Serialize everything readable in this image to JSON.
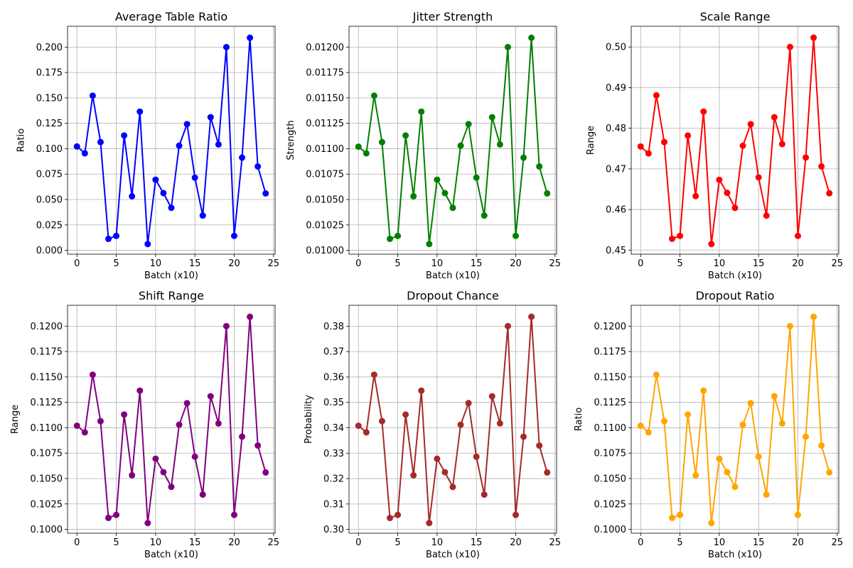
{
  "chart_data": [
    {
      "type": "line",
      "title": "Average Table Ratio",
      "xlabel": "Batch (x10)",
      "ylabel": "Ratio",
      "color": "#0000ff",
      "grid": true,
      "x": [
        0,
        1,
        2,
        3,
        4,
        5,
        6,
        7,
        8,
        9,
        10,
        11,
        12,
        13,
        14,
        15,
        16,
        17,
        18,
        19,
        20,
        21,
        22,
        23,
        24
      ],
      "values": [
        0.1022,
        0.0955,
        0.1522,
        0.1065,
        0.0113,
        0.0142,
        0.113,
        0.0532,
        0.1365,
        0.0062,
        0.0695,
        0.0563,
        0.0418,
        0.103,
        0.1242,
        0.0715,
        0.0342,
        0.131,
        0.1042,
        0.2,
        0.0142,
        0.0912,
        0.2092,
        0.0825,
        0.056
      ],
      "xlim": [
        -1.2,
        25.2
      ],
      "ylim": [
        -0.0038,
        0.2205
      ],
      "xticks": [
        0,
        5,
        10,
        15,
        20,
        25
      ],
      "xtick_labels": [
        "0",
        "5",
        "10",
        "15",
        "20",
        "25"
      ],
      "yticks": [
        0,
        0.025,
        0.05,
        0.075,
        0.1,
        0.125,
        0.15,
        0.175,
        0.2
      ],
      "ytick_labels": [
        "0.000",
        "0.025",
        "0.050",
        "0.075",
        "0.100",
        "0.125",
        "0.150",
        "0.175",
        "0.200"
      ]
    },
    {
      "type": "line",
      "title": "Jitter Strength",
      "xlabel": "Batch (x10)",
      "ylabel": "Strength",
      "color": "#008000",
      "grid": true,
      "x": [
        0,
        1,
        2,
        3,
        4,
        5,
        6,
        7,
        8,
        9,
        10,
        11,
        12,
        13,
        14,
        15,
        16,
        17,
        18,
        19,
        20,
        21,
        22,
        23,
        24
      ],
      "values": [
        0.01102,
        0.010955,
        0.011522,
        0.011065,
        0.010113,
        0.010142,
        0.01113,
        0.010532,
        0.011365,
        0.010062,
        0.010695,
        0.010563,
        0.010418,
        0.01103,
        0.011242,
        0.010715,
        0.010342,
        0.01131,
        0.011042,
        0.012,
        0.010142,
        0.010912,
        0.012092,
        0.010825,
        0.01056
      ],
      "xlim": [
        -1.2,
        25.2
      ],
      "ylim": [
        0.009962,
        0.012205
      ],
      "xticks": [
        0,
        5,
        10,
        15,
        20,
        25
      ],
      "xtick_labels": [
        "0",
        "5",
        "10",
        "15",
        "20",
        "25"
      ],
      "yticks": [
        0.01,
        0.01025,
        0.0105,
        0.01075,
        0.011,
        0.01125,
        0.0115,
        0.01175,
        0.012
      ],
      "ytick_labels": [
        "0.01000",
        "0.01025",
        "0.01050",
        "0.01075",
        "0.01100",
        "0.01125",
        "0.01150",
        "0.01175",
        "0.01200"
      ]
    },
    {
      "type": "line",
      "title": "Scale Range",
      "xlabel": "Batch (x10)",
      "ylabel": "Range",
      "color": "#ff0000",
      "grid": true,
      "x": [
        0,
        1,
        2,
        3,
        4,
        5,
        6,
        7,
        8,
        9,
        10,
        11,
        12,
        13,
        14,
        15,
        16,
        17,
        18,
        19,
        20,
        21,
        22,
        23,
        24
      ],
      "values": [
        0.4755,
        0.4738,
        0.4881,
        0.4766,
        0.4528,
        0.4535,
        0.4782,
        0.4633,
        0.4841,
        0.4515,
        0.4673,
        0.4641,
        0.4604,
        0.4757,
        0.481,
        0.4679,
        0.4585,
        0.4827,
        0.4761,
        0.5,
        0.4535,
        0.4728,
        0.5023,
        0.4706,
        0.464
      ],
      "xlim": [
        -1.2,
        25.2
      ],
      "ylim": [
        0.449,
        0.5051
      ],
      "xticks": [
        0,
        5,
        10,
        15,
        20,
        25
      ],
      "xtick_labels": [
        "0",
        "5",
        "10",
        "15",
        "20",
        "25"
      ],
      "yticks": [
        0.45,
        0.46,
        0.47,
        0.48,
        0.49,
        0.5
      ],
      "ytick_labels": [
        "0.45",
        "0.46",
        "0.47",
        "0.48",
        "0.49",
        "0.50"
      ]
    },
    {
      "type": "line",
      "title": "Shift Range",
      "xlabel": "Batch (x10)",
      "ylabel": "Range",
      "color": "#800080",
      "grid": true,
      "x": [
        0,
        1,
        2,
        3,
        4,
        5,
        6,
        7,
        8,
        9,
        10,
        11,
        12,
        13,
        14,
        15,
        16,
        17,
        18,
        19,
        20,
        21,
        22,
        23,
        24
      ],
      "values": [
        0.1102,
        0.10955,
        0.11522,
        0.11065,
        0.10113,
        0.10142,
        0.1113,
        0.10532,
        0.11365,
        0.10062,
        0.10695,
        0.10563,
        0.10418,
        0.1103,
        0.11242,
        0.10715,
        0.10342,
        0.1131,
        0.11042,
        0.12,
        0.10142,
        0.10912,
        0.12092,
        0.10825,
        0.1056
      ],
      "xlim": [
        -1.2,
        25.2
      ],
      "ylim": [
        0.09962,
        0.12205
      ],
      "xticks": [
        0,
        5,
        10,
        15,
        20,
        25
      ],
      "xtick_labels": [
        "0",
        "5",
        "10",
        "15",
        "20",
        "25"
      ],
      "yticks": [
        0.1,
        0.1025,
        0.105,
        0.1075,
        0.11,
        0.1125,
        0.115,
        0.1175,
        0.12
      ],
      "ytick_labels": [
        "0.1000",
        "0.1025",
        "0.1050",
        "0.1075",
        "0.1100",
        "0.1125",
        "0.1150",
        "0.1175",
        "0.1200"
      ]
    },
    {
      "type": "line",
      "title": "Dropout Chance",
      "xlabel": "Batch (x10)",
      "ylabel": "Probability",
      "color": "#a52a2a",
      "grid": true,
      "x": [
        0,
        1,
        2,
        3,
        4,
        5,
        6,
        7,
        8,
        9,
        10,
        11,
        12,
        13,
        14,
        15,
        16,
        17,
        18,
        19,
        20,
        21,
        22,
        23,
        24
      ],
      "values": [
        0.3408,
        0.3382,
        0.3609,
        0.3426,
        0.3045,
        0.3057,
        0.3452,
        0.3213,
        0.3546,
        0.3025,
        0.3278,
        0.3225,
        0.3167,
        0.3412,
        0.3497,
        0.3286,
        0.3137,
        0.3524,
        0.3417,
        0.38,
        0.3057,
        0.3365,
        0.3837,
        0.333,
        0.3224
      ],
      "xlim": [
        -1.2,
        25.2
      ],
      "ylim": [
        0.2985,
        0.3882
      ],
      "xticks": [
        0,
        5,
        10,
        15,
        20,
        25
      ],
      "xtick_labels": [
        "0",
        "5",
        "10",
        "15",
        "20",
        "25"
      ],
      "yticks": [
        0.3,
        0.31,
        0.32,
        0.33,
        0.34,
        0.35,
        0.36,
        0.37,
        0.38
      ],
      "ytick_labels": [
        "0.30",
        "0.31",
        "0.32",
        "0.33",
        "0.34",
        "0.35",
        "0.36",
        "0.37",
        "0.38"
      ]
    },
    {
      "type": "line",
      "title": "Dropout Ratio",
      "xlabel": "Batch (x10)",
      "ylabel": "Ratio",
      "color": "#ffa500",
      "grid": true,
      "x": [
        0,
        1,
        2,
        3,
        4,
        5,
        6,
        7,
        8,
        9,
        10,
        11,
        12,
        13,
        14,
        15,
        16,
        17,
        18,
        19,
        20,
        21,
        22,
        23,
        24
      ],
      "values": [
        0.1102,
        0.10955,
        0.11522,
        0.11065,
        0.10113,
        0.10142,
        0.1113,
        0.10532,
        0.11365,
        0.10062,
        0.10695,
        0.10563,
        0.10418,
        0.1103,
        0.11242,
        0.10715,
        0.10342,
        0.1131,
        0.11042,
        0.12,
        0.10142,
        0.10912,
        0.12092,
        0.10825,
        0.1056
      ],
      "xlim": [
        -1.2,
        25.2
      ],
      "ylim": [
        0.09962,
        0.12205
      ],
      "xticks": [
        0,
        5,
        10,
        15,
        20,
        25
      ],
      "xtick_labels": [
        "0",
        "5",
        "10",
        "15",
        "20",
        "25"
      ],
      "yticks": [
        0.1,
        0.1025,
        0.105,
        0.1075,
        0.11,
        0.1125,
        0.115,
        0.1175,
        0.12
      ],
      "ytick_labels": [
        "0.1000",
        "0.1025",
        "0.1050",
        "0.1075",
        "0.1100",
        "0.1125",
        "0.1150",
        "0.1175",
        "0.1200"
      ]
    }
  ]
}
